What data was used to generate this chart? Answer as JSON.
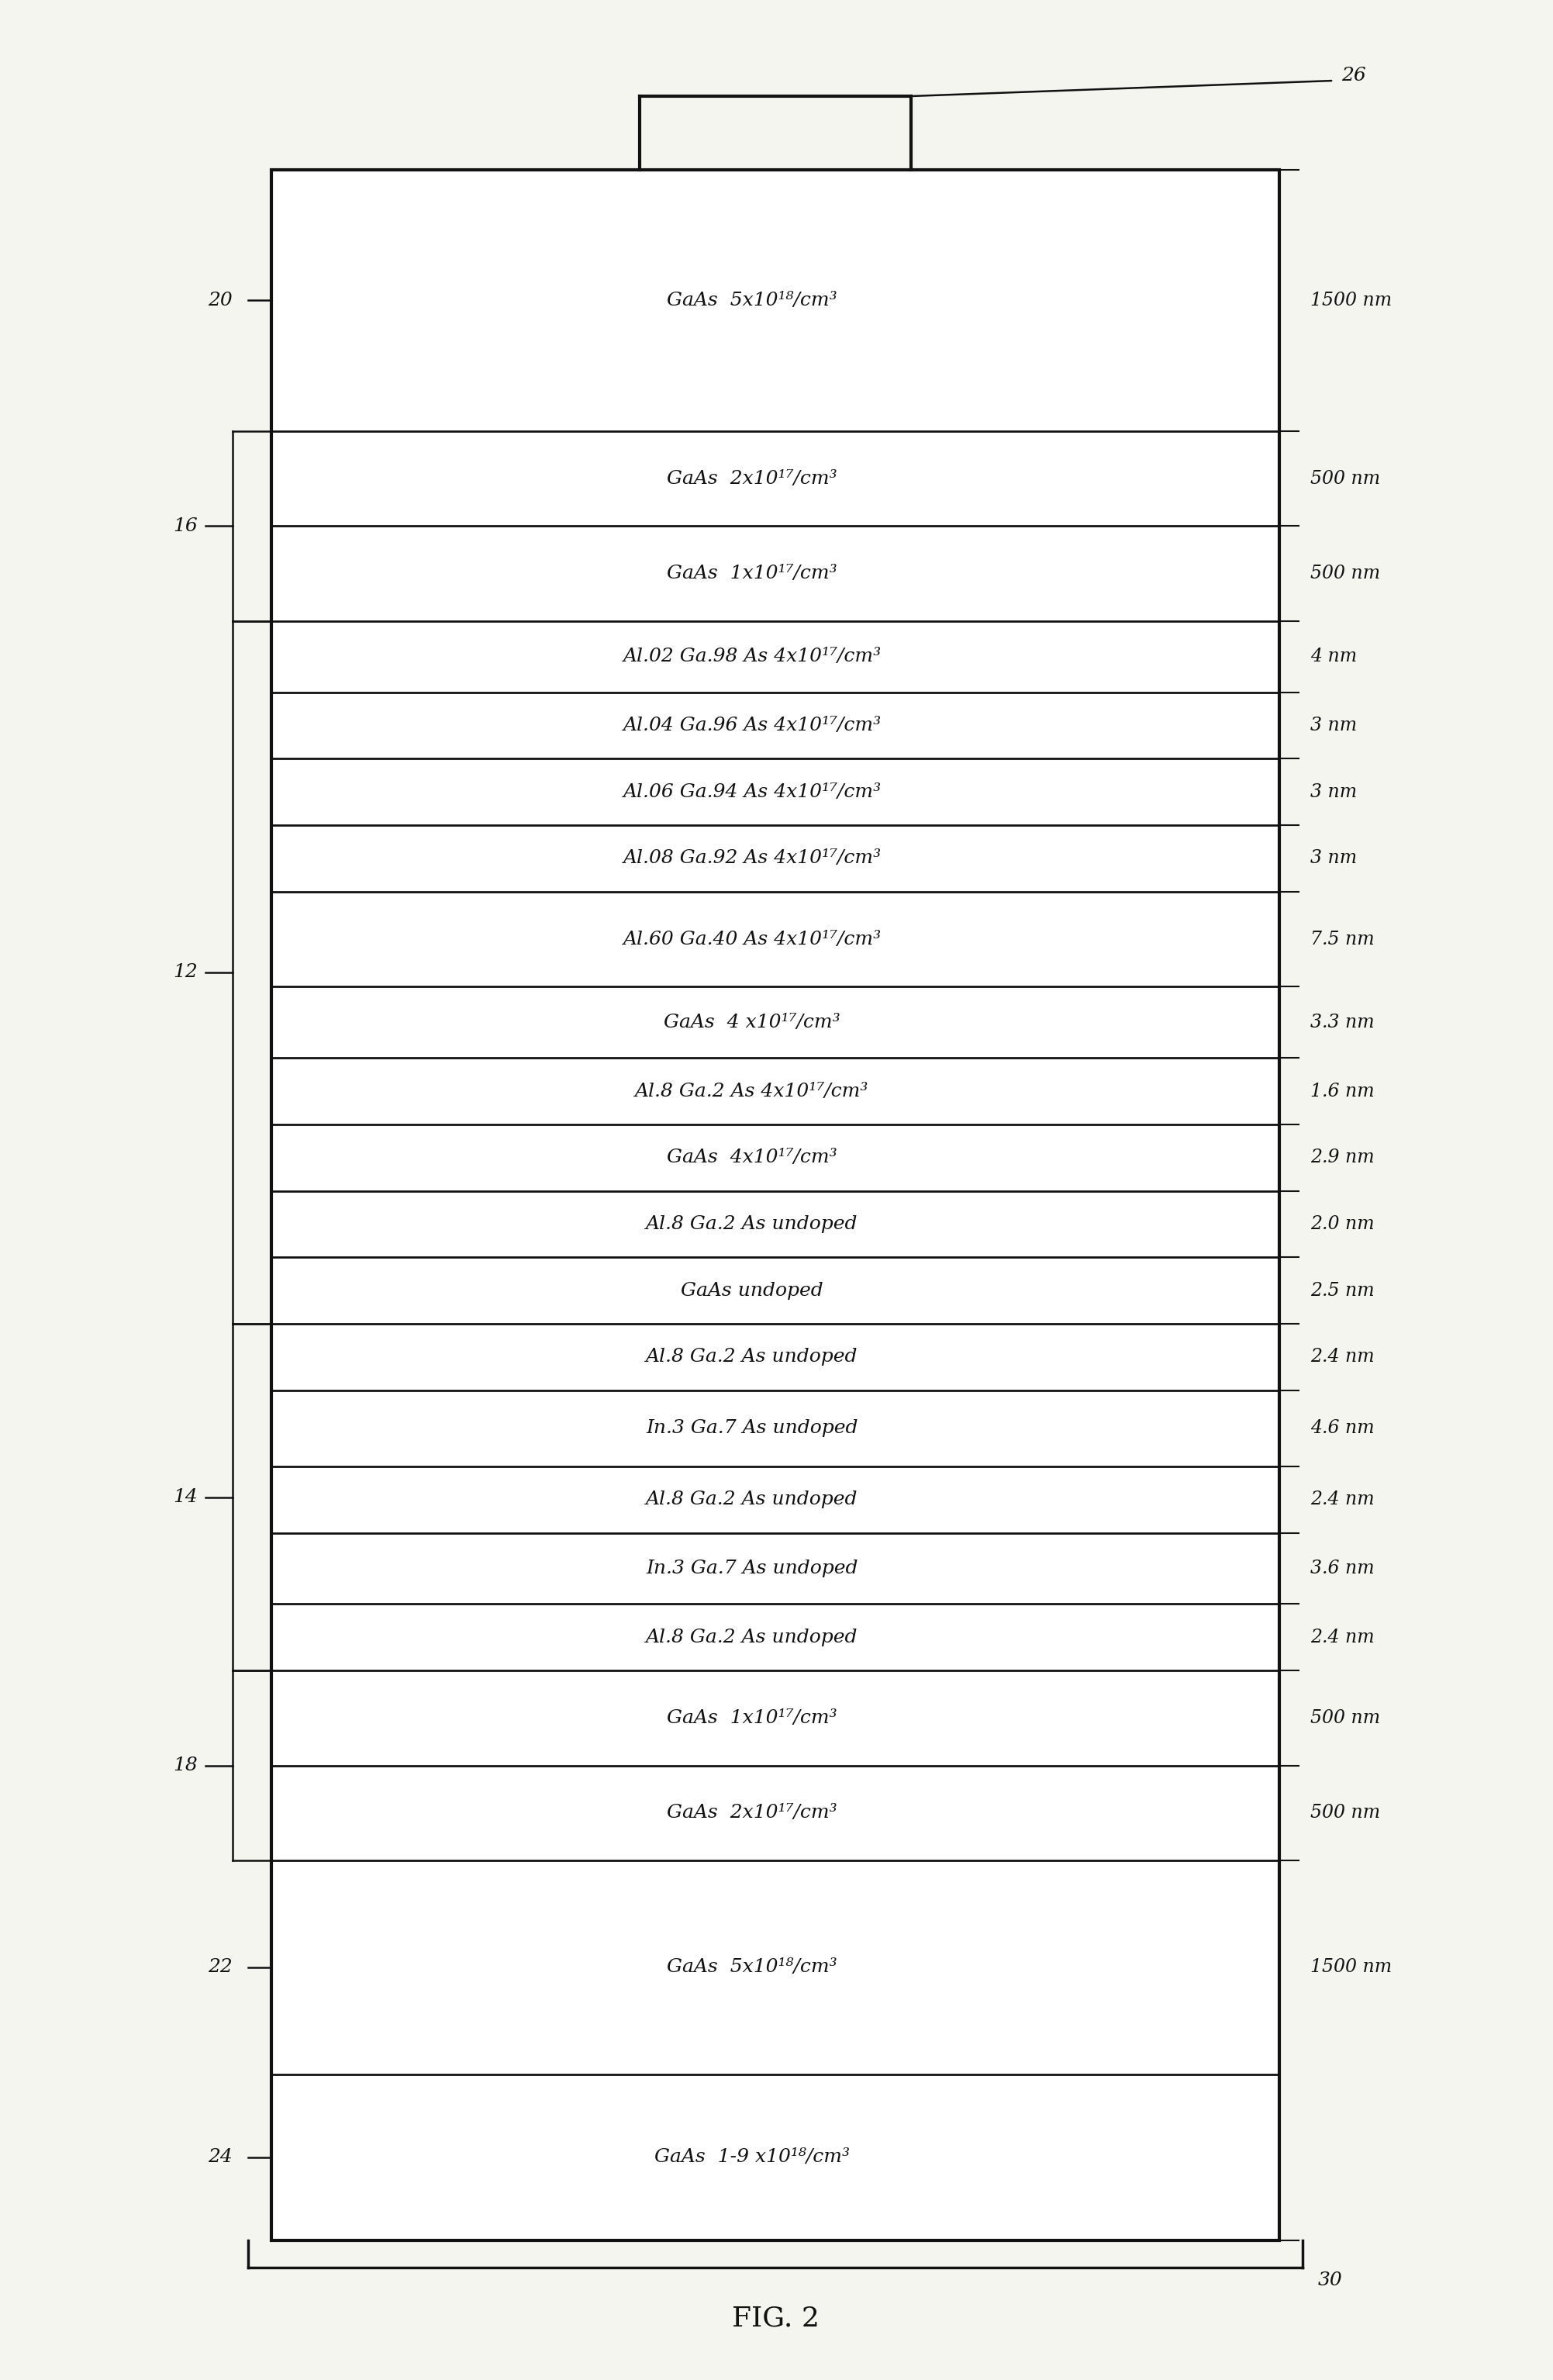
{
  "title": "FIG. 2",
  "layers": [
    {
      "label": "GaAs  5x10¹⁸/cm³",
      "thickness": "1500 nm",
      "ref": "20",
      "hw": 5.5
    },
    {
      "label": "GaAs  2x10¹⁷/cm³",
      "thickness": "500 nm",
      "ref": "16",
      "hw": 2.0
    },
    {
      "label": "GaAs  1x10¹⁷/cm³",
      "thickness": "500 nm",
      "ref": "16",
      "hw": 2.0
    },
    {
      "label": "Al.02 Ga.98 As 4x10¹⁷/cm³",
      "thickness": "4 nm",
      "ref": "12",
      "hw": 1.5
    },
    {
      "label": "Al.04 Ga.96 As 4x10¹⁷/cm³",
      "thickness": "3 nm",
      "ref": "12",
      "hw": 1.4
    },
    {
      "label": "Al.06 Ga.94 As 4x10¹⁷/cm³",
      "thickness": "3 nm",
      "ref": "12",
      "hw": 1.4
    },
    {
      "label": "Al.08 Ga.92 As 4x10¹⁷/cm³",
      "thickness": "3 nm",
      "ref": "12",
      "hw": 1.4
    },
    {
      "label": "Al.60 Ga.40 As 4x10¹⁷/cm³",
      "thickness": "7.5 nm",
      "ref": "12",
      "hw": 2.0
    },
    {
      "label": "GaAs  4 x10¹⁷/cm³",
      "thickness": "3.3 nm",
      "ref": "12",
      "hw": 1.5
    },
    {
      "label": "Al.8 Ga.2 As 4x10¹⁷/cm³",
      "thickness": "1.6 nm",
      "ref": "12",
      "hw": 1.4
    },
    {
      "label": "GaAs  4x10¹⁷/cm³",
      "thickness": "2.9 nm",
      "ref": "12",
      "hw": 1.4
    },
    {
      "label": "Al.8 Ga.2 As undoped",
      "thickness": "2.0 nm",
      "ref": "12",
      "hw": 1.4
    },
    {
      "label": "GaAs undoped",
      "thickness": "2.5 nm",
      "ref": "12",
      "hw": 1.4
    },
    {
      "label": "Al.8 Ga.2 As undoped",
      "thickness": "2.4 nm",
      "ref": "14",
      "hw": 1.4
    },
    {
      "label": "In.3 Ga.7 As undoped",
      "thickness": "4.6 nm",
      "ref": "14",
      "hw": 1.6
    },
    {
      "label": "Al.8 Ga.2 As undoped",
      "thickness": "2.4 nm",
      "ref": "14",
      "hw": 1.4
    },
    {
      "label": "In.3 Ga.7 As undoped",
      "thickness": "3.6 nm",
      "ref": "14",
      "hw": 1.5
    },
    {
      "label": "Al.8 Ga.2 As undoped",
      "thickness": "2.4 nm",
      "ref": "14",
      "hw": 1.4
    },
    {
      "label": "GaAs  1x10¹⁷/cm³",
      "thickness": "500 nm",
      "ref": "18",
      "hw": 2.0
    },
    {
      "label": "GaAs  2x10¹⁷/cm³",
      "thickness": "500 nm",
      "ref": "18",
      "hw": 2.0
    },
    {
      "label": "GaAs  5x10¹⁸/cm³",
      "thickness": "1500 nm",
      "ref": "22",
      "hw": 4.5
    },
    {
      "label": "GaAs  1-9 x10¹⁸/cm³",
      "thickness": "",
      "ref": "24",
      "hw": 3.5
    }
  ],
  "background": "#f5f5f0",
  "text_color": "#111111",
  "line_color": "#111111"
}
